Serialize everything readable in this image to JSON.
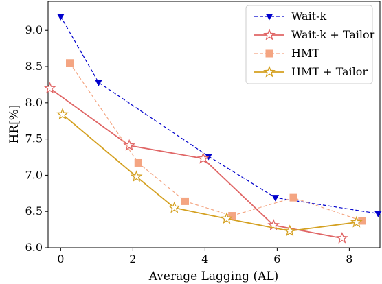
{
  "chart_data": {
    "type": "line",
    "xlabel": "Average Lagging (AL)",
    "ylabel": "HR[%]",
    "xlim": [
      -0.35,
      8.85
    ],
    "ylim": [
      6.0,
      9.4
    ],
    "xticks": [
      0,
      2,
      4,
      6,
      8
    ],
    "yticks": [
      6.0,
      6.5,
      7.0,
      7.5,
      8.0,
      8.5,
      9.0
    ],
    "legend_position": "top-right",
    "grid": false,
    "series": [
      {
        "name": "Wait-k",
        "color": "#0000cc",
        "line_style": "dashed",
        "marker": "triangle-down",
        "x": [
          0.0,
          1.05,
          4.1,
          5.95,
          8.8
        ],
        "y": [
          9.19,
          8.28,
          7.26,
          6.69,
          6.47
        ]
      },
      {
        "name": "Wait-k + Tailor",
        "color": "#e06666",
        "line_style": "solid",
        "marker": "star",
        "x": [
          -0.3,
          1.9,
          3.95,
          5.9,
          7.8
        ],
        "y": [
          8.2,
          7.41,
          7.23,
          6.31,
          6.13
        ]
      },
      {
        "name": "HMT",
        "color": "#f4a582",
        "line_style": "dashed",
        "marker": "square",
        "x": [
          0.25,
          2.15,
          3.45,
          4.75,
          6.45,
          8.35
        ],
        "y": [
          8.55,
          7.17,
          6.64,
          6.44,
          6.69,
          6.37
        ]
      },
      {
        "name": "HMT + Tailor",
        "color": "#d4a020",
        "line_style": "solid",
        "marker": "star",
        "x": [
          0.05,
          2.1,
          3.15,
          4.6,
          6.35,
          8.2
        ],
        "y": [
          7.84,
          6.98,
          6.55,
          6.4,
          6.23,
          6.35
        ]
      }
    ]
  }
}
